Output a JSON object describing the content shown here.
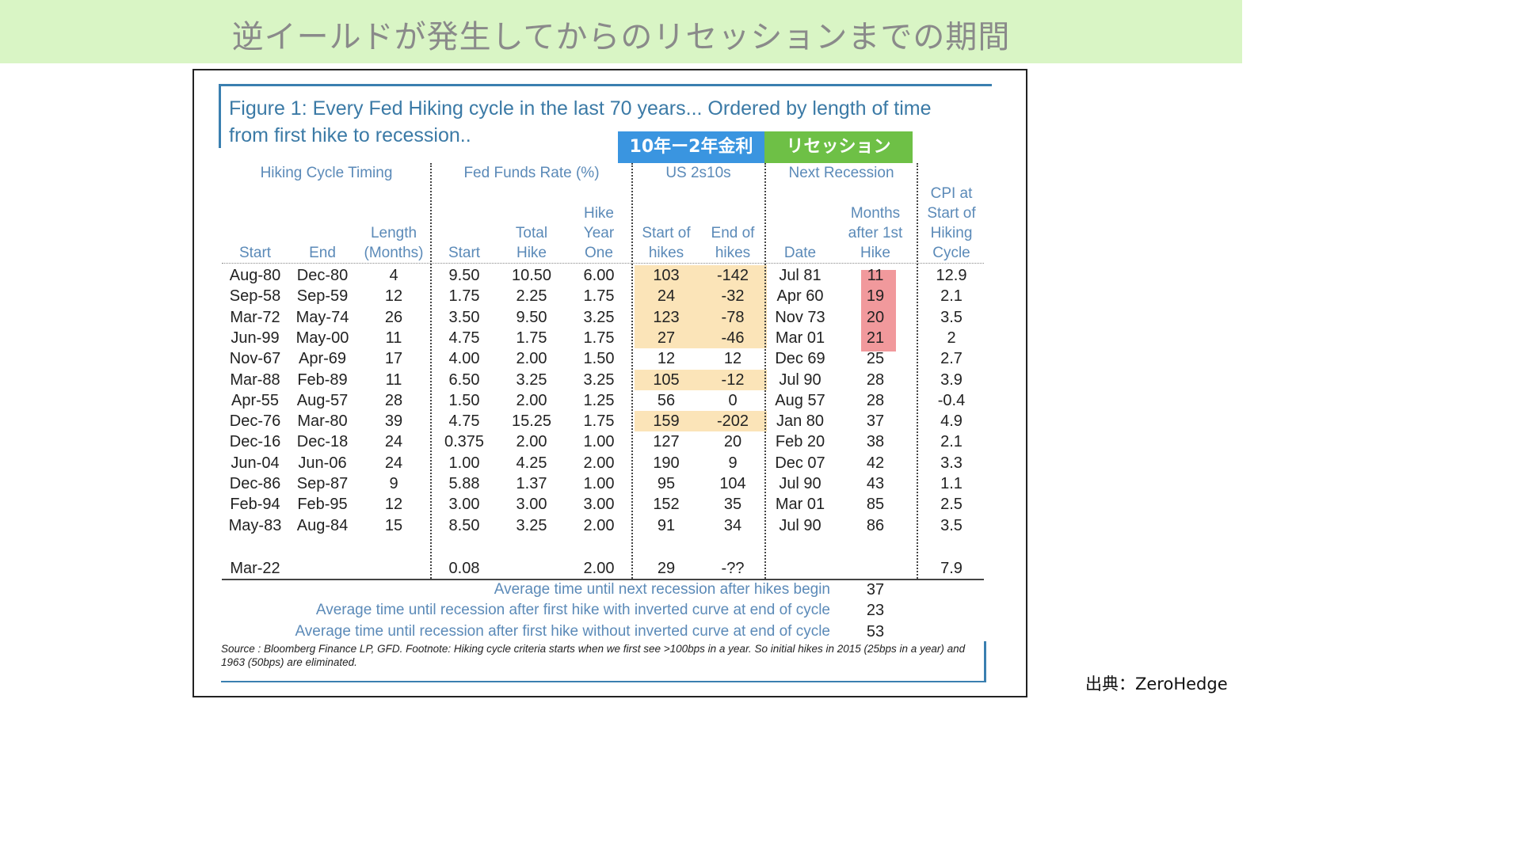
{
  "banner": {
    "title": "逆イールドが発生してからのリセッションまでの期間"
  },
  "figure": {
    "title_line1": "Figure 1: Every Fed Hiking cycle in the last 70 years... Ordered by length of time",
    "title_line2": "from first hike to recession.."
  },
  "tags": {
    "blue": "10年ー2年金利",
    "green": "リセッション"
  },
  "groups": {
    "timing": "Hiking Cycle Timing",
    "ffr": "Fed Funds Rate (%)",
    "us2s10s": "US 2s10s",
    "recession": "Next Recession"
  },
  "columns": [
    "Start",
    "End",
    "Length\n(Months)",
    "Start",
    "Total\nHike",
    "Hike\nYear\nOne",
    "Start of\nhikes",
    "End of\nhikes",
    "Date",
    "Months\nafter 1st\nHike",
    "CPI at\nStart of\nHiking\nCycle"
  ],
  "rows": [
    [
      "Aug-80",
      "Dec-80",
      "4",
      "9.50",
      "10.50",
      "6.00",
      "103",
      "-142",
      "Jul 81",
      "11",
      "12.9"
    ],
    [
      "Sep-58",
      "Sep-59",
      "12",
      "1.75",
      "2.25",
      "1.75",
      "24",
      "-32",
      "Apr 60",
      "19",
      "2.1"
    ],
    [
      "Mar-72",
      "May-74",
      "26",
      "3.50",
      "9.50",
      "3.25",
      "123",
      "-78",
      "Nov 73",
      "20",
      "3.5"
    ],
    [
      "Jun-99",
      "May-00",
      "11",
      "4.75",
      "1.75",
      "1.75",
      "27",
      "-46",
      "Mar 01",
      "21",
      "2"
    ],
    [
      "Nov-67",
      "Apr-69",
      "17",
      "4.00",
      "2.00",
      "1.50",
      "12",
      "12",
      "Dec 69",
      "25",
      "2.7"
    ],
    [
      "Mar-88",
      "Feb-89",
      "11",
      "6.50",
      "3.25",
      "3.25",
      "105",
      "-12",
      "Jul 90",
      "28",
      "3.9"
    ],
    [
      "Apr-55",
      "Aug-57",
      "28",
      "1.50",
      "2.00",
      "1.25",
      "56",
      "0",
      "Aug 57",
      "28",
      "-0.4"
    ],
    [
      "Dec-76",
      "Mar-80",
      "39",
      "4.75",
      "15.25",
      "1.75",
      "159",
      "-202",
      "Jan 80",
      "37",
      "4.9"
    ],
    [
      "Dec-16",
      "Dec-18",
      "24",
      "0.375",
      "2.00",
      "1.00",
      "127",
      "20",
      "Feb 20",
      "38",
      "2.1"
    ],
    [
      "Jun-04",
      "Jun-06",
      "24",
      "1.00",
      "4.25",
      "2.00",
      "190",
      "9",
      "Dec 07",
      "42",
      "3.3"
    ],
    [
      "Dec-86",
      "Sep-87",
      "9",
      "5.88",
      "1.37",
      "1.00",
      "95",
      "104",
      "Jul 90",
      "43",
      "1.1"
    ],
    [
      "Feb-94",
      "Feb-95",
      "12",
      "3.00",
      "3.00",
      "3.00",
      "152",
      "35",
      "Mar 01",
      "85",
      "2.5"
    ],
    [
      "May-83",
      "Aug-84",
      "15",
      "8.50",
      "3.25",
      "2.00",
      "91",
      "34",
      "Jul 90",
      "86",
      "3.5"
    ]
  ],
  "current_row": [
    "Mar-22",
    "",
    "",
    "0.08",
    "",
    "2.00",
    "29",
    "-??",
    "",
    "",
    "7.9"
  ],
  "averages": [
    {
      "label": "Average time until next recession after hikes begin",
      "value": "37"
    },
    {
      "label": "Average time until recession after first hike with inverted curve at end of cycle",
      "value": "23"
    },
    {
      "label": "Average time until recession after first hike without inverted curve at end of cycle",
      "value": "53"
    }
  ],
  "source": "Source : Bloomberg Finance LP, GFD. Footnote: Hiking cycle criteria starts when we first see >100bps in a year. So initial hikes in 2015 (25bps in a year) and 1963 (50bps) are eliminated.",
  "credit": "出典：ZeroHedge",
  "colors": {
    "banner_bg": "#d9f5c5",
    "header_blue": "#5b8ab8",
    "tag_blue": "#3a95e0",
    "tag_green": "#6ec046",
    "highlight_yellow": "#fbe4b8",
    "highlight_red": "#f1999c"
  }
}
